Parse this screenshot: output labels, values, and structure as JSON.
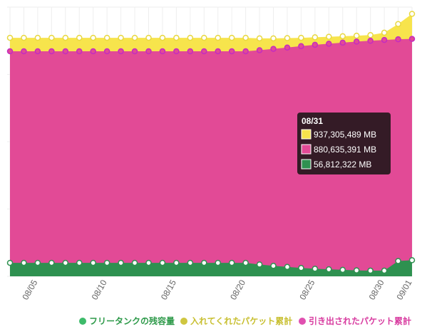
{
  "chart_data": {
    "type": "area",
    "categories": [
      null,
      null,
      "08/05",
      null,
      null,
      null,
      null,
      "08/10",
      null,
      null,
      null,
      null,
      "08/15",
      null,
      null,
      null,
      null,
      "08/20",
      null,
      null,
      null,
      null,
      "08/25",
      null,
      null,
      null,
      null,
      "08/30",
      null,
      "09/01"
    ],
    "series": [
      {
        "name": "フリータンクの残容量",
        "color": "#2e9150",
        "values": [
          50000000,
          50000000,
          50000000,
          50000000,
          50000000,
          50000000,
          50000000,
          50000000,
          50000000,
          50000000,
          50000000,
          50000000,
          50000000,
          50000000,
          50000000,
          50000000,
          50000000,
          50000000,
          44000000,
          39000000,
          35000000,
          31000000,
          28000000,
          26000000,
          24000000,
          22000000,
          21000000,
          21000000,
          56812322,
          60000000
        ]
      },
      {
        "name": "入れてくれたパケット累計",
        "color": "#f7e44c",
        "values": [
          886000000,
          886000000,
          886000000,
          886000000,
          886000000,
          886000000,
          886000000,
          886000000,
          886000000,
          886000000,
          886000000,
          886000000,
          886000000,
          886000000,
          886000000,
          886000000,
          886000000,
          886000000,
          884000000,
          884000000,
          885000000,
          886000000,
          888000000,
          890000000,
          892000000,
          894000000,
          896000000,
          905000000,
          937305489,
          975000000
        ]
      },
      {
        "name": "引き出されたパケット累計",
        "color": "#e24a96",
        "values": [
          836000000,
          836000000,
          836000000,
          836000000,
          836000000,
          836000000,
          836000000,
          836000000,
          836000000,
          836000000,
          836000000,
          836000000,
          836000000,
          836000000,
          836000000,
          836000000,
          836000000,
          836000000,
          840000000,
          845000000,
          850000000,
          855000000,
          860000000,
          864000000,
          868000000,
          872000000,
          875000000,
          878000000,
          880635391,
          882000000
        ]
      }
    ],
    "ylim": [
      0,
      1000000000
    ],
    "grid": true,
    "legend": "bottom",
    "tooltip": {
      "title": "08/31",
      "index": 28,
      "labels": [
        "937,305,489 MB",
        "880,635,391 MB",
        "56,812,322 MB"
      ],
      "series_order": [
        1,
        2,
        0
      ]
    }
  }
}
